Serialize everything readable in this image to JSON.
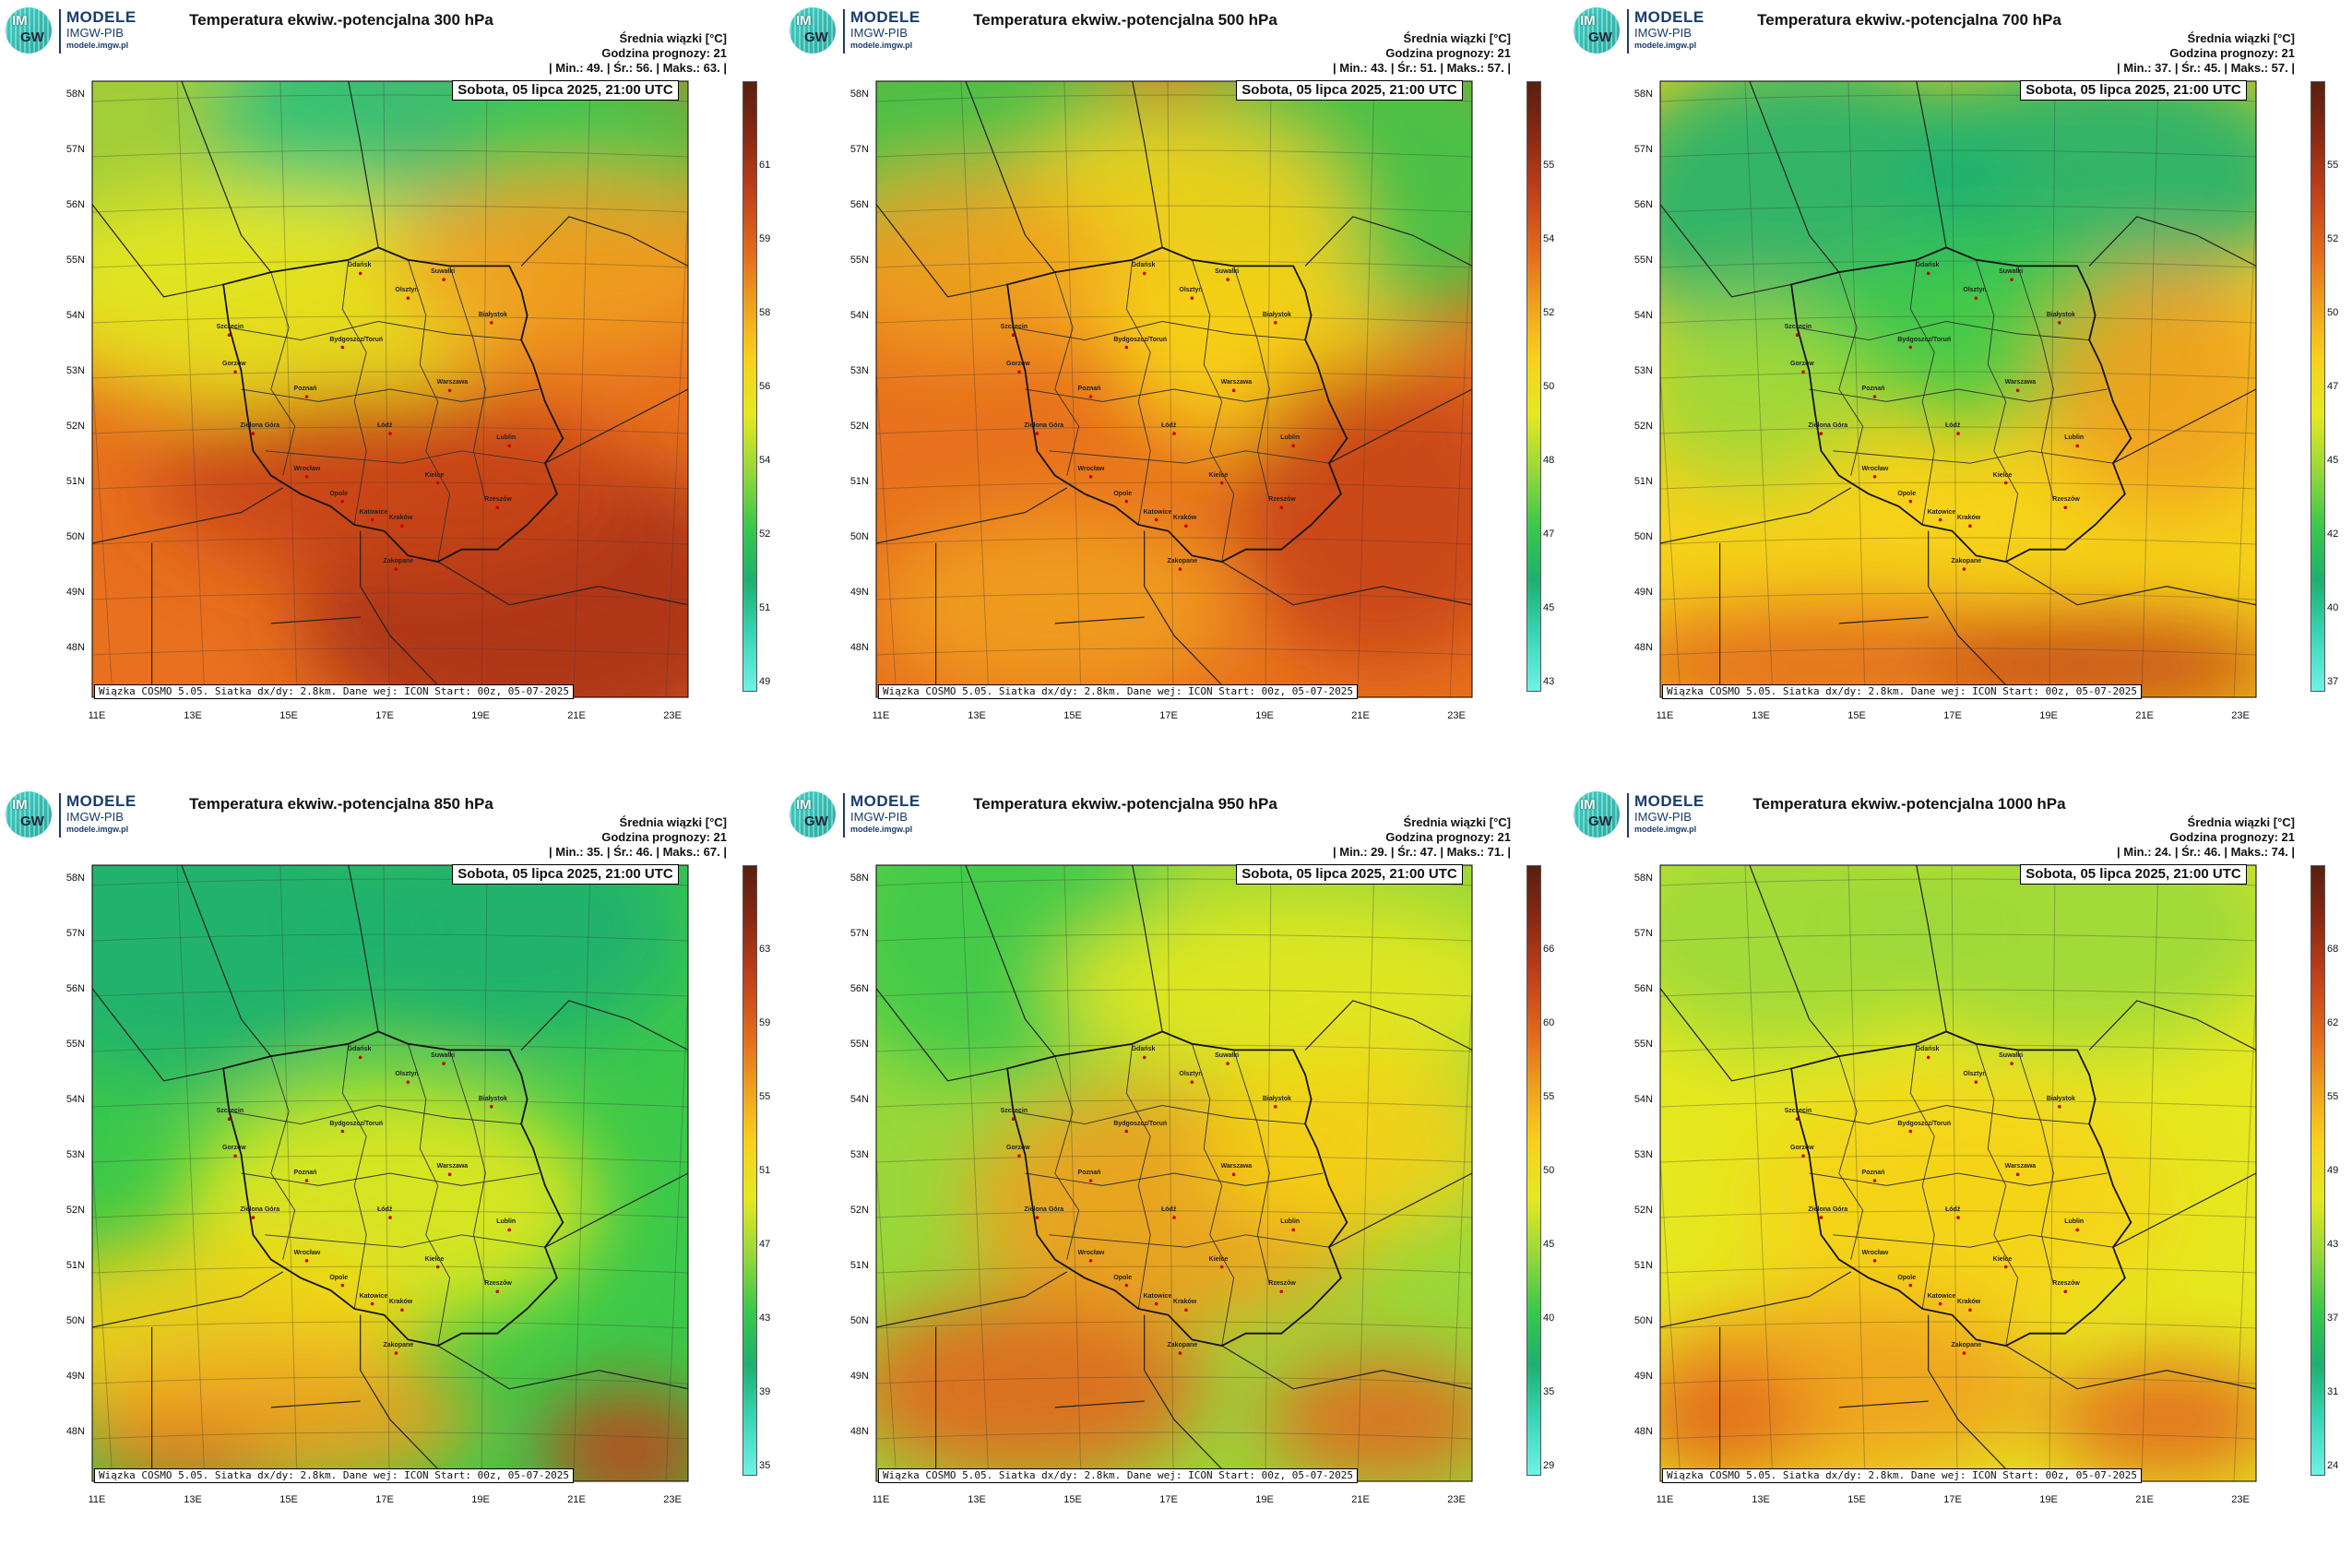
{
  "logo": {
    "mark_top": "IM",
    "mark_bottom": "GW",
    "name": "MODELE",
    "org": "IMGW-PIB",
    "url": "modele.imgw.pl"
  },
  "common": {
    "legend_title": "Średnia wiązki [°C]",
    "forecast_hour": "Godzina prognozy: 21",
    "valid_time": "Sobota, 05 lipca 2025, 21:00 UTC",
    "footnote": "Wiązka COSMO 5.05. Siatka dx/dy: 2.8km. Dane wej: ICON Start: 00z, 05-07-2025",
    "lat_labels": [
      "58N",
      "57N",
      "56N",
      "55N",
      "54N",
      "53N",
      "52N",
      "51N",
      "50N",
      "49N",
      "48N"
    ],
    "lon_labels": [
      "11E",
      "13E",
      "15E",
      "17E",
      "19E",
      "21E",
      "23E"
    ],
    "cities": [
      "Gdańsk",
      "Suwałki",
      "Olsztyn",
      "Szczecin",
      "Bydgoszcz/Toruń",
      "Białystok",
      "Gorzów",
      "Poznań",
      "Warszawa",
      "Zielona Góra",
      "Łódź",
      "Lublin",
      "Wrocław",
      "Kielce",
      "Opole",
      "Rzeszów",
      "Katowice",
      "Kraków",
      "Zakopane"
    ]
  },
  "panels": [
    {
      "title": "Temperatura ekwiw.-potencjalna 300 hPa",
      "stats": "| Min.:    49. | Śr.:    56. | Maks.:    63. |",
      "cbar_ticks": [
        "61",
        "59",
        "58",
        "56",
        "54",
        "52",
        "51",
        "49"
      ],
      "style": "p300",
      "min": 49,
      "mean": 56,
      "max": 63
    },
    {
      "title": "Temperatura ekwiw.-potencjalna 500 hPa",
      "stats": "| Min.:    43. | Śr.:    51. | Maks.:    57. |",
      "cbar_ticks": [
        "55",
        "54",
        "52",
        "50",
        "48",
        "47",
        "45",
        "43"
      ],
      "style": "p500",
      "min": 43,
      "mean": 51,
      "max": 57
    },
    {
      "title": "Temperatura ekwiw.-potencjalna 700 hPa",
      "stats": "| Min.:    37. | Śr.:    45. | Maks.:    57. |",
      "cbar_ticks": [
        "55",
        "52",
        "50",
        "47",
        "45",
        "42",
        "40",
        "37"
      ],
      "style": "p700",
      "min": 37,
      "mean": 45,
      "max": 57
    },
    {
      "title": "Temperatura ekwiw.-potencjalna 850 hPa",
      "stats": "| Min.:    35. | Śr.:    46. | Maks.:    67. |",
      "cbar_ticks": [
        "63",
        "59",
        "55",
        "51",
        "47",
        "43",
        "39",
        "35"
      ],
      "style": "p850",
      "min": 35,
      "mean": 46,
      "max": 67
    },
    {
      "title": "Temperatura ekwiw.-potencjalna 950 hPa",
      "stats": "| Min.:    29. | Śr.:    47. | Maks.:    71. |",
      "cbar_ticks": [
        "66",
        "60",
        "55",
        "50",
        "45",
        "40",
        "35",
        "29"
      ],
      "style": "p950",
      "min": 29,
      "mean": 47,
      "max": 71
    },
    {
      "title": "Temperatura ekwiw.-potencjalna 1000 hPa",
      "stats": "| Min.:    24. | Śr.:    46. | Maks.:    74. |",
      "cbar_ticks": [
        "68",
        "62",
        "55",
        "49",
        "43",
        "37",
        "31",
        "24"
      ],
      "style": "p1000",
      "min": 24,
      "mean": 46,
      "max": 74
    }
  ],
  "colors": {
    "cbar": [
      "#5a1e12",
      "#8a2a14",
      "#c2401a",
      "#e2661c",
      "#f0a020",
      "#f6d21a",
      "#e6e820",
      "#9ad83a",
      "#3cc94a",
      "#1eb070",
      "#3ad6b8",
      "#6ff2e4"
    ]
  }
}
